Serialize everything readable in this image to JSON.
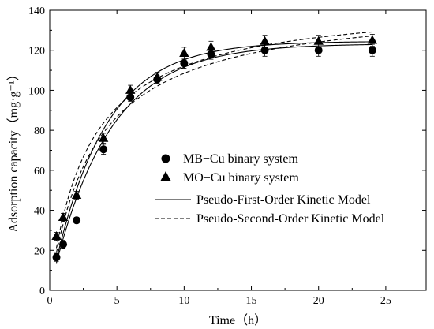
{
  "chart_data": {
    "type": "scatter",
    "xlabel": "Time（h）",
    "ylabel": "Adsorption capacity（mg·g⁻¹）",
    "xlim": [
      0,
      28
    ],
    "ylim": [
      0,
      140
    ],
    "x_ticks": [
      0,
      5,
      10,
      15,
      20,
      25
    ],
    "y_ticks": [
      0,
      20,
      40,
      60,
      80,
      100,
      120,
      140
    ],
    "grid": false,
    "legend_position": "center-right",
    "series": [
      {
        "name": "MB−Cu binary system",
        "kind": "points",
        "marker": "circle",
        "x": [
          0.5,
          1,
          2,
          4,
          6,
          8,
          10,
          12,
          16,
          20,
          24
        ],
        "y": [
          16.5,
          23,
          35,
          70.5,
          96.5,
          105.5,
          113.5,
          118,
          120,
          120,
          120
        ],
        "error": [
          2,
          2,
          1.5,
          2.5,
          2,
          2,
          2.5,
          2.5,
          3,
          3,
          3
        ]
      },
      {
        "name": "MO−Cu binary system",
        "kind": "points",
        "marker": "triangle",
        "x": [
          0.5,
          1,
          2,
          4,
          6,
          8,
          10,
          12,
          16,
          20,
          24
        ],
        "y": [
          27,
          36.5,
          47.5,
          76,
          100,
          106.5,
          118.5,
          121.5,
          124.5,
          124.5,
          125
        ],
        "error": [
          2,
          2,
          2,
          2.5,
          2.5,
          2.5,
          3,
          3,
          3,
          3,
          3
        ]
      },
      {
        "name": "Pseudo-First-Order Kinetic Model",
        "kind": "line",
        "style": "solid",
        "curves": [
          {
            "qe": 124.5,
            "k": 0.26
          },
          {
            "qe": 123.3,
            "k": 0.235
          }
        ]
      },
      {
        "name": "Pseudo-Second-Order Kinetic Model",
        "kind": "line",
        "style": "dashed",
        "curves": [
          {
            "qe": 145.0,
            "k": 0.00235
          },
          {
            "qe": 145.0,
            "k": 0.00205
          }
        ]
      }
    ]
  }
}
